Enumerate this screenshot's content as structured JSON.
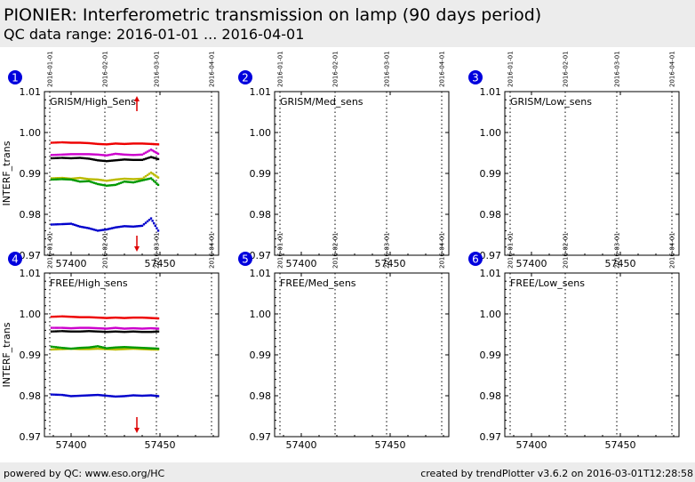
{
  "header": {
    "title": "PIONIER: Interferometric transmission on lamp (90 days period)",
    "subtitle": "QC data range: 2016-01-01 ... 2016-04-01"
  },
  "footer": {
    "left": "powered by QC: www.eso.org/HC",
    "right": "created by trendPlotter v3.6.2 on 2016-03-01T12:28:58"
  },
  "colors": {
    "red": "#ee0000",
    "magenta": "#cc00cc",
    "black": "#000000",
    "yellow": "#bbbb00",
    "green": "#009900",
    "blue": "#0000cc",
    "badge": "#0000dd",
    "arrow": "#dd0000"
  },
  "chart_data": [
    {
      "panel": 1,
      "type": "scatter",
      "label": "GRISM/High_Sens",
      "ylabel": "INTERF_trans",
      "xlim": [
        57385,
        57483
      ],
      "ylim": [
        0.97,
        1.01
      ],
      "xticks": [
        57400,
        57450
      ],
      "xtick_labels": [
        "57400",
        "57450"
      ],
      "yticks": [
        0.97,
        0.98,
        0.99,
        1.0,
        1.01
      ],
      "ytick_labels": [
        "0.97",
        "0.98",
        "0.99",
        "1.00",
        "1.01"
      ],
      "date_markers": [
        {
          "x": 57388,
          "label": "2016-01-01"
        },
        {
          "x": 57419,
          "label": "2016-02-01"
        },
        {
          "x": 57448,
          "label": "2016-03-01"
        },
        {
          "x": 57479,
          "label": "2016-04-01"
        }
      ],
      "out_of_range": [
        {
          "x": 57437,
          "direction": "up"
        },
        {
          "x": 57437,
          "direction": "down"
        }
      ],
      "series": [
        {
          "color": "red",
          "points": [
            [
              57389,
              0.9975
            ],
            [
              57395,
              0.9976
            ],
            [
              57400,
              0.9975
            ],
            [
              57405,
              0.9975
            ],
            [
              57410,
              0.9974
            ],
            [
              57415,
              0.9972
            ],
            [
              57420,
              0.9971
            ],
            [
              57425,
              0.9973
            ],
            [
              57430,
              0.9972
            ],
            [
              57435,
              0.9973
            ],
            [
              57440,
              0.9973
            ],
            [
              57445,
              0.9972
            ],
            [
              57449,
              0.9971
            ]
          ]
        },
        {
          "color": "magenta",
          "points": [
            [
              57389,
              0.9945
            ],
            [
              57395,
              0.9946
            ],
            [
              57400,
              0.9947
            ],
            [
              57405,
              0.9947
            ],
            [
              57410,
              0.9947
            ],
            [
              57415,
              0.9946
            ],
            [
              57420,
              0.9944
            ],
            [
              57425,
              0.9948
            ],
            [
              57430,
              0.9946
            ],
            [
              57435,
              0.9945
            ],
            [
              57440,
              0.9946
            ],
            [
              57445,
              0.9958
            ],
            [
              57449,
              0.9948
            ]
          ]
        },
        {
          "color": "black",
          "points": [
            [
              57389,
              0.9937
            ],
            [
              57395,
              0.9938
            ],
            [
              57400,
              0.9937
            ],
            [
              57405,
              0.9938
            ],
            [
              57410,
              0.9936
            ],
            [
              57415,
              0.9932
            ],
            [
              57420,
              0.993
            ],
            [
              57425,
              0.9932
            ],
            [
              57430,
              0.9934
            ],
            [
              57435,
              0.9933
            ],
            [
              57440,
              0.9933
            ],
            [
              57445,
              0.994
            ],
            [
              57449,
              0.9935
            ]
          ]
        },
        {
          "color": "yellow",
          "points": [
            [
              57389,
              0.9888
            ],
            [
              57395,
              0.9889
            ],
            [
              57400,
              0.9887
            ],
            [
              57405,
              0.9889
            ],
            [
              57410,
              0.9886
            ],
            [
              57415,
              0.9885
            ],
            [
              57420,
              0.9882
            ],
            [
              57425,
              0.9885
            ],
            [
              57430,
              0.9887
            ],
            [
              57435,
              0.9886
            ],
            [
              57440,
              0.9887
            ],
            [
              57445,
              0.9902
            ],
            [
              57449,
              0.989
            ]
          ]
        },
        {
          "color": "green",
          "points": [
            [
              57389,
              0.9885
            ],
            [
              57395,
              0.9886
            ],
            [
              57400,
              0.9885
            ],
            [
              57405,
              0.988
            ],
            [
              57410,
              0.9881
            ],
            [
              57415,
              0.9874
            ],
            [
              57420,
              0.987
            ],
            [
              57425,
              0.9872
            ],
            [
              57430,
              0.988
            ],
            [
              57435,
              0.9878
            ],
            [
              57440,
              0.9883
            ],
            [
              57445,
              0.9888
            ],
            [
              57449,
              0.9872
            ]
          ]
        },
        {
          "color": "blue",
          "points": [
            [
              57389,
              0.9775
            ],
            [
              57395,
              0.9776
            ],
            [
              57400,
              0.9777
            ],
            [
              57405,
              0.977
            ],
            [
              57410,
              0.9766
            ],
            [
              57415,
              0.976
            ],
            [
              57420,
              0.9763
            ],
            [
              57425,
              0.9768
            ],
            [
              57430,
              0.9771
            ],
            [
              57435,
              0.977
            ],
            [
              57440,
              0.9772
            ],
            [
              57445,
              0.979
            ],
            [
              57449,
              0.976
            ]
          ]
        }
      ]
    },
    {
      "panel": 2,
      "type": "scatter",
      "label": "GRISM/Med_sens",
      "ylabel": "",
      "xlim": [
        57385,
        57483
      ],
      "ylim": [
        0.97,
        1.01
      ],
      "xticks": [
        57400,
        57450
      ],
      "xtick_labels": [
        "57400",
        "57450"
      ],
      "yticks": [
        0.97,
        0.98,
        0.99,
        1.0,
        1.01
      ],
      "ytick_labels": [
        "0.97",
        "0.98",
        "0.99",
        "1.00",
        "1.01"
      ],
      "date_markers": [
        {
          "x": 57388,
          "label": "2016-01-01"
        },
        {
          "x": 57419,
          "label": "2016-02-01"
        },
        {
          "x": 57448,
          "label": "2016-03-01"
        },
        {
          "x": 57479,
          "label": "2016-04-01"
        }
      ],
      "out_of_range": [],
      "series": []
    },
    {
      "panel": 3,
      "type": "scatter",
      "label": "GRISM/Low_sens",
      "ylabel": "",
      "xlim": [
        57385,
        57483
      ],
      "ylim": [
        0.97,
        1.01
      ],
      "xticks": [
        57400,
        57450
      ],
      "xtick_labels": [
        "57400",
        "57450"
      ],
      "yticks": [
        0.97,
        0.98,
        0.99,
        1.0,
        1.01
      ],
      "ytick_labels": [
        "0.97",
        "0.98",
        "0.99",
        "1.00",
        "1.01"
      ],
      "date_markers": [
        {
          "x": 57388,
          "label": "2016-01-01"
        },
        {
          "x": 57419,
          "label": "2016-02-01"
        },
        {
          "x": 57448,
          "label": "2016-03-01"
        },
        {
          "x": 57479,
          "label": "2016-04-01"
        }
      ],
      "out_of_range": [],
      "series": []
    },
    {
      "panel": 4,
      "type": "scatter",
      "label": "FREE/High_sens",
      "ylabel": "INTERF_trans",
      "xlim": [
        57385,
        57483
      ],
      "ylim": [
        0.97,
        1.01
      ],
      "xticks": [
        57400,
        57450
      ],
      "xtick_labels": [
        "57400",
        "57450"
      ],
      "yticks": [
        0.97,
        0.98,
        0.99,
        1.0,
        1.01
      ],
      "ytick_labels": [
        "0.97",
        "0.98",
        "0.99",
        "1.00",
        "1.01"
      ],
      "date_markers": [
        {
          "x": 57388,
          "label": "2016-01-01"
        },
        {
          "x": 57419,
          "label": "2016-02-01"
        },
        {
          "x": 57448,
          "label": "2016-03-01"
        },
        {
          "x": 57479,
          "label": "2016-04-01"
        }
      ],
      "out_of_range": [
        {
          "x": 57437,
          "direction": "down"
        }
      ],
      "series": [
        {
          "color": "red",
          "points": [
            [
              57389,
              0.9993
            ],
            [
              57395,
              0.9994
            ],
            [
              57400,
              0.9993
            ],
            [
              57405,
              0.9992
            ],
            [
              57410,
              0.9992
            ],
            [
              57415,
              0.9991
            ],
            [
              57420,
              0.999
            ],
            [
              57425,
              0.9991
            ],
            [
              57430,
              0.999
            ],
            [
              57435,
              0.9991
            ],
            [
              57440,
              0.9991
            ],
            [
              57445,
              0.999
            ],
            [
              57449,
              0.9989
            ]
          ]
        },
        {
          "color": "magenta",
          "points": [
            [
              57389,
              0.9966
            ],
            [
              57395,
              0.9966
            ],
            [
              57400,
              0.9965
            ],
            [
              57405,
              0.9966
            ],
            [
              57410,
              0.9966
            ],
            [
              57415,
              0.9965
            ],
            [
              57420,
              0.9964
            ],
            [
              57425,
              0.9966
            ],
            [
              57430,
              0.9964
            ],
            [
              57435,
              0.9965
            ],
            [
              57440,
              0.9964
            ],
            [
              57445,
              0.9965
            ],
            [
              57449,
              0.9964
            ]
          ]
        },
        {
          "color": "black",
          "points": [
            [
              57389,
              0.9957
            ],
            [
              57395,
              0.9958
            ],
            [
              57400,
              0.9957
            ],
            [
              57405,
              0.9957
            ],
            [
              57410,
              0.9958
            ],
            [
              57415,
              0.9957
            ],
            [
              57420,
              0.9956
            ],
            [
              57425,
              0.9957
            ],
            [
              57430,
              0.9956
            ],
            [
              57435,
              0.9957
            ],
            [
              57440,
              0.9956
            ],
            [
              57445,
              0.9956
            ],
            [
              57449,
              0.9957
            ]
          ]
        },
        {
          "color": "yellow",
          "points": [
            [
              57389,
              0.9913
            ],
            [
              57395,
              0.9914
            ],
            [
              57400,
              0.9915
            ],
            [
              57405,
              0.9914
            ],
            [
              57410,
              0.9914
            ],
            [
              57415,
              0.9915
            ],
            [
              57420,
              0.9914
            ],
            [
              57425,
              0.9913
            ],
            [
              57430,
              0.9914
            ],
            [
              57435,
              0.9915
            ],
            [
              57440,
              0.9914
            ],
            [
              57445,
              0.9913
            ],
            [
              57449,
              0.9913
            ]
          ]
        },
        {
          "color": "green",
          "points": [
            [
              57389,
              0.992
            ],
            [
              57395,
              0.9917
            ],
            [
              57400,
              0.9915
            ],
            [
              57405,
              0.9917
            ],
            [
              57410,
              0.9918
            ],
            [
              57415,
              0.9921
            ],
            [
              57420,
              0.9916
            ],
            [
              57425,
              0.9918
            ],
            [
              57430,
              0.9919
            ],
            [
              57435,
              0.9918
            ],
            [
              57440,
              0.9917
            ],
            [
              57445,
              0.9916
            ],
            [
              57449,
              0.9915
            ]
          ]
        },
        {
          "color": "blue",
          "points": [
            [
              57389,
              0.9803
            ],
            [
              57395,
              0.9802
            ],
            [
              57400,
              0.9799
            ],
            [
              57405,
              0.98
            ],
            [
              57410,
              0.9801
            ],
            [
              57415,
              0.9802
            ],
            [
              57420,
              0.98
            ],
            [
              57425,
              0.9798
            ],
            [
              57430,
              0.9799
            ],
            [
              57435,
              0.9801
            ],
            [
              57440,
              0.98
            ],
            [
              57445,
              0.9801
            ],
            [
              57449,
              0.9799
            ]
          ]
        }
      ]
    },
    {
      "panel": 5,
      "type": "scatter",
      "label": "FREE/Med_sens",
      "ylabel": "",
      "xlim": [
        57385,
        57483
      ],
      "ylim": [
        0.97,
        1.01
      ],
      "xticks": [
        57400,
        57450
      ],
      "xtick_labels": [
        "57400",
        "57450"
      ],
      "yticks": [
        0.97,
        0.98,
        0.99,
        1.0,
        1.01
      ],
      "ytick_labels": [
        "0.97",
        "0.98",
        "0.99",
        "1.00",
        "1.01"
      ],
      "date_markers": [
        {
          "x": 57388,
          "label": "2016-01-01"
        },
        {
          "x": 57419,
          "label": "2016-02-01"
        },
        {
          "x": 57448,
          "label": "2016-03-01"
        },
        {
          "x": 57479,
          "label": "2016-04-01"
        }
      ],
      "out_of_range": [],
      "series": []
    },
    {
      "panel": 6,
      "type": "scatter",
      "label": "FREE/Low_sens",
      "ylabel": "",
      "xlim": [
        57385,
        57483
      ],
      "ylim": [
        0.97,
        1.01
      ],
      "xticks": [
        57400,
        57450
      ],
      "xtick_labels": [
        "57400",
        "57450"
      ],
      "yticks": [
        0.97,
        0.98,
        0.99,
        1.0,
        1.01
      ],
      "ytick_labels": [
        "0.97",
        "0.98",
        "0.99",
        "1.00",
        "1.01"
      ],
      "date_markers": [
        {
          "x": 57388,
          "label": "2016-01-01"
        },
        {
          "x": 57419,
          "label": "2016-02-01"
        },
        {
          "x": 57448,
          "label": "2016-03-01"
        },
        {
          "x": 57479,
          "label": "2016-04-01"
        }
      ],
      "out_of_range": [],
      "series": []
    }
  ]
}
